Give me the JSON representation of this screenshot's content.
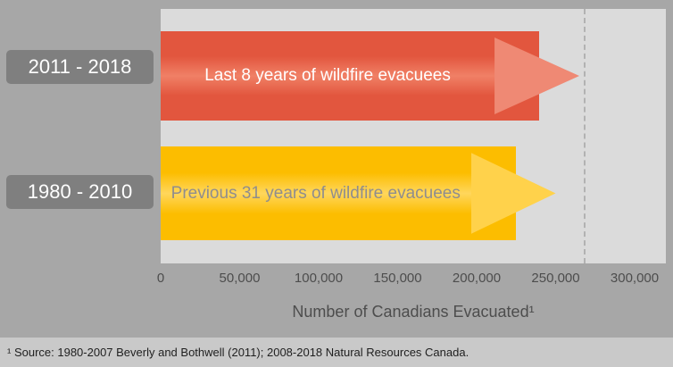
{
  "chart_data": {
    "type": "bar",
    "orientation": "horizontal",
    "title": "",
    "categories": [
      "2011 - 2018",
      "1980 - 2010"
    ],
    "values": [
      265000,
      250000
    ],
    "bar_text_labels": [
      "Last 8 years of wildfire evacuees",
      "Previous 31 years of wildfire evacuees"
    ],
    "xlabel": "Number of Canadians Evacuated¹",
    "xlim": [
      0,
      300000
    ],
    "x_ticks": [
      0,
      50000,
      100000,
      150000,
      200000,
      250000,
      300000
    ],
    "x_tick_labels": [
      "0",
      "50,000",
      "100,000",
      "150,000",
      "200,000",
      "250,000",
      "300,000"
    ],
    "reference_line_x": 268000,
    "grid": false,
    "legend": false,
    "colors": {
      "bars": [
        {
          "base": "#e2563e",
          "highlight": "#f08066",
          "head": "#ef8974",
          "label": "#ffffff"
        },
        {
          "base": "#fcbd00",
          "highlight": "#ffd65c",
          "head": "#ffd24b",
          "label": "#8f8d8d"
        }
      ],
      "plot_background": "#dbdbdb",
      "page_background": "#a7a7a7",
      "category_pill_background": "#7f7f7f",
      "axis_text": "#4d4d4d",
      "reference_line": "#b2b2b2"
    }
  },
  "footnote": "¹ Source: 1980-2007 Beverly and Bothwell (2011); 2008-2018 Natural Resources Canada."
}
